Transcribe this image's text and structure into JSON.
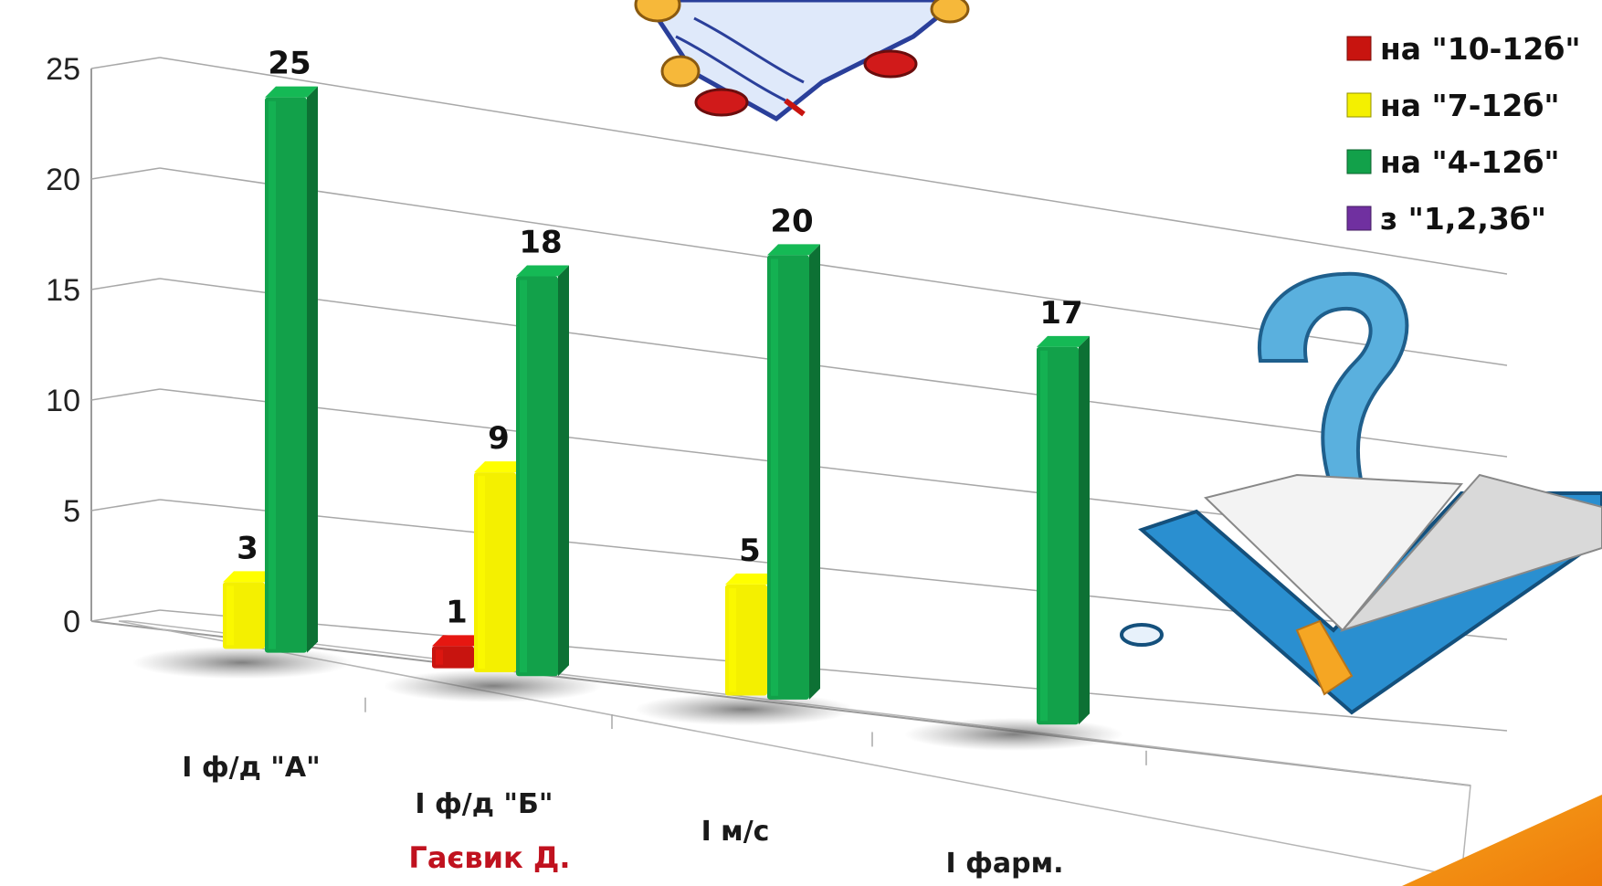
{
  "chart_data": {
    "type": "bar",
    "categories": [
      "I ф/д \"А\"",
      "I ф/д \"Б\"",
      "I м/с",
      "I фарм."
    ],
    "series": [
      {
        "name": "на \"10-12б\"",
        "color": "#c8140f",
        "values": [
          null,
          1,
          null,
          null
        ]
      },
      {
        "name": "на \"7-12б\"",
        "color": "#f4f000",
        "values": [
          3,
          9,
          5,
          null
        ]
      },
      {
        "name": "на \"4-12б\"",
        "color": "#12a14a",
        "values": [
          25,
          18,
          20,
          17
        ]
      },
      {
        "name": "з \"1,2,3б\"",
        "color": "#7030a0",
        "values": [
          null,
          null,
          null,
          null
        ]
      }
    ],
    "ylim": [
      0,
      25
    ],
    "yticks": [
      0,
      5,
      10,
      15,
      20,
      25
    ],
    "grid": true,
    "legend": "top-right",
    "annotation": "Гаєвик Д."
  }
}
